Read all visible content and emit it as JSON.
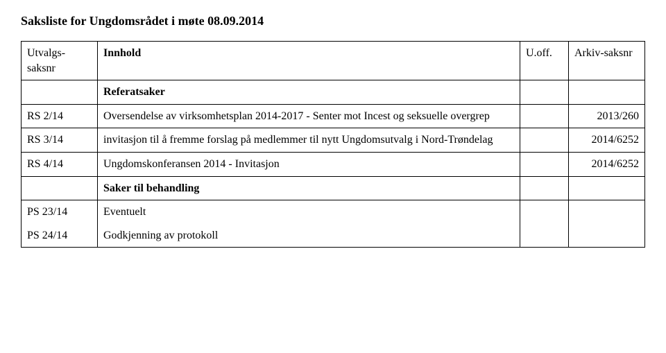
{
  "title": "Saksliste for Ungdomsrådet i møte 08.09.2014",
  "headers": {
    "saksnr": "Utvalgs-saksnr",
    "innhold": "Innhold",
    "uoff": "U.off.",
    "arkiv": "Arkiv-saksnr"
  },
  "sections": {
    "referatsaker": "Referatsaker",
    "sakerTilBehandling": "Saker til behandling"
  },
  "rows": {
    "rs214": {
      "saksnr": "RS 2/14",
      "innhold": "Oversendelse av virksomhetsplan 2014-2017 - Senter mot Incest og seksuelle overgrep",
      "uoff": "",
      "arkiv": "2013/260"
    },
    "rs314": {
      "saksnr": "RS 3/14",
      "innhold": "invitasjon til å fremme forslag på medlemmer til nytt Ungdomsutvalg i Nord-Trøndelag",
      "uoff": "",
      "arkiv": "2014/6252"
    },
    "rs414": {
      "saksnr": "RS 4/14",
      "innhold": "Ungdomskonferansen 2014 - Invitasjon",
      "uoff": "",
      "arkiv": "2014/6252"
    },
    "ps2314": {
      "saksnr": "PS 23/14",
      "innhold": "Eventuelt",
      "uoff": "",
      "arkiv": ""
    },
    "ps2414": {
      "saksnr": "PS 24/14",
      "innhold": "Godkjenning av protokoll",
      "uoff": "",
      "arkiv": ""
    }
  }
}
